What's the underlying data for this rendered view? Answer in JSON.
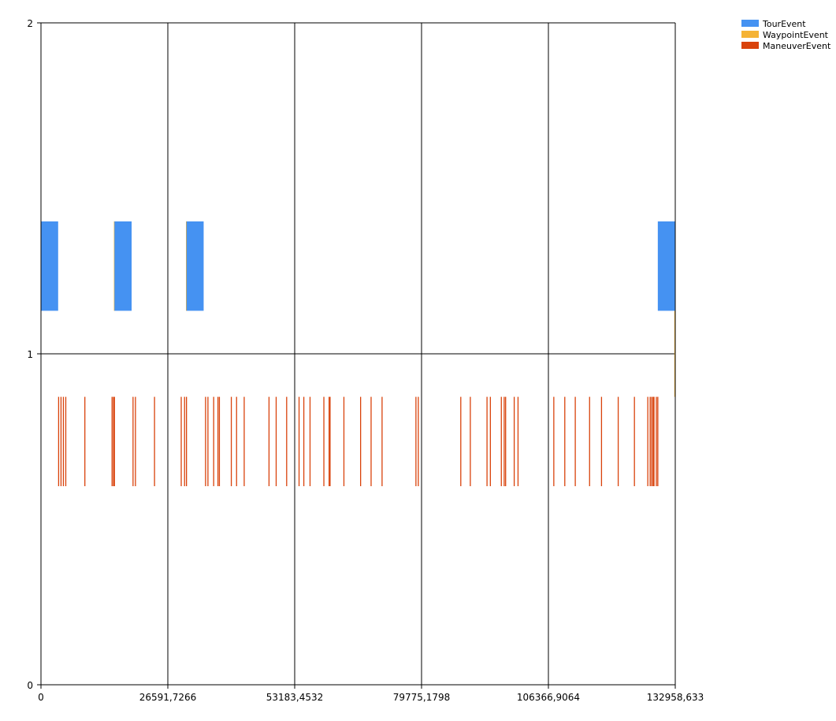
{
  "chart_data": {
    "type": "timeline",
    "title": "",
    "xlabel": "",
    "ylabel": "",
    "xlim": [
      0,
      132958.633
    ],
    "ylim": [
      0,
      2
    ],
    "x_ticks": [
      "0",
      "26591,7266",
      "53183,4532",
      "79775,1798",
      "106366,9064",
      "132958,633"
    ],
    "y_ticks": [
      "0",
      "1",
      "2"
    ],
    "grid": true,
    "legend_position": "top-right",
    "legend": [
      {
        "key": "tour",
        "label": "TourEvent",
        "color": "#4592f2"
      },
      {
        "key": "waypoint",
        "label": "WaypointEvent",
        "color": "#f5b335"
      },
      {
        "key": "maneuver",
        "label": "ManeuverEvent",
        "color": "#d9420b"
      }
    ],
    "series": {
      "tour": {
        "y_range": [
          1.13,
          1.4
        ],
        "segments": [
          [
            0,
            3600
          ],
          [
            15400,
            19000
          ],
          [
            30500,
            34100
          ],
          [
            129300,
            132958.633
          ]
        ]
      },
      "waypoint": {
        "y_range": [
          0.87,
          1.13
        ],
        "lines": [
          15400,
          30500,
          132958.633
        ],
        "line_ranges": [
          [
            1.13,
            1.4
          ],
          [
            1.13,
            1.4
          ],
          [
            0.87,
            1.13
          ]
        ]
      },
      "maneuver": {
        "y_range": [
          0.6,
          0.87
        ],
        "events": [
          3700,
          4200,
          4700,
          5200,
          9200,
          14900,
          15200,
          15400,
          19300,
          19800,
          23800,
          29400,
          30100,
          30500,
          34500,
          35000,
          36200,
          37100,
          37400,
          39900,
          41000,
          42600,
          47800,
          49300,
          51500,
          54100,
          55100,
          56400,
          59300,
          60400,
          60600,
          63500,
          67000,
          69200,
          71500,
          78600,
          79100,
          88000,
          90000,
          93500,
          94200,
          96500,
          97100,
          97400,
          99200,
          100000,
          107500,
          109800,
          112000,
          115000,
          117500,
          121000,
          124400,
          127200,
          127700,
          128000,
          128300,
          128500,
          129000,
          129300
        ]
      }
    }
  }
}
